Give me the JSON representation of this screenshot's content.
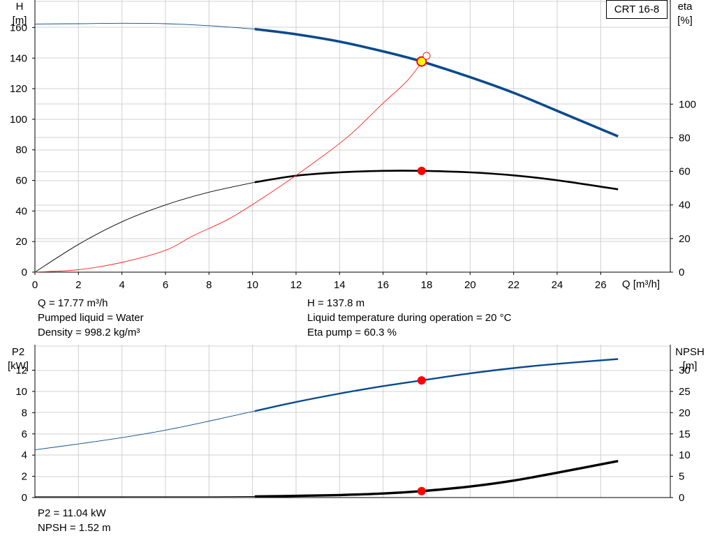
{
  "model_label": "CRT 16-8",
  "top_chart": {
    "left_axis_label": [
      "H",
      "[m]"
    ],
    "right_axis_label": [
      "eta",
      "[%]"
    ],
    "x_axis_label": "Q [m³/h]"
  },
  "bottom_chart": {
    "left_axis_label": [
      "P2",
      "[kW]"
    ],
    "right_axis_label": [
      "NPSH",
      "[m]"
    ]
  },
  "operating_point": {
    "left_lines": [
      "Q = 17.77 m³/h",
      "Pumped liquid = Water",
      "Density = 998.2 kg/m³"
    ],
    "right_lines": [
      "H = 137.8 m",
      "Liquid temperature during operation = 20 °C",
      "Eta pump = 60.3 %"
    ],
    "bottom_lines": [
      "P2 = 11.04 kW",
      "NPSH = 1.52 m"
    ]
  },
  "colors": {
    "head": "#0a4a8c",
    "efficiency": "#000000",
    "system_curve": "#ff2020",
    "p2": "#0a4a8c",
    "npsh": "#000000",
    "duty_marker": "#ff0000",
    "duty_marker_head": "#ffff00",
    "grid": "#d0d0d0"
  },
  "chart_data": [
    {
      "type": "line",
      "x_ticks": [
        0,
        2,
        4,
        6,
        8,
        10,
        12,
        14,
        16,
        18,
        20,
        22,
        24,
        26
      ],
      "xlim": [
        0,
        29.2
      ],
      "y_left_ticks": [
        0,
        20,
        40,
        60,
        80,
        100,
        120,
        140,
        160
      ],
      "ylim_left": [
        0,
        178
      ],
      "y_right_ticks": [
        0,
        20,
        40,
        60,
        80,
        100
      ],
      "grid": true,
      "series": [
        {
          "axis": "left",
          "x": [
            0,
            2,
            4,
            6,
            8,
            10.1,
            12,
            14,
            16,
            17.77,
            20,
            22,
            24,
            26.8
          ],
          "values": [
            162.3,
            162.5,
            162.8,
            162.5,
            161.2,
            159.0,
            155.6,
            150.8,
            144.4,
            137.8,
            127.5,
            117.3,
            105.5,
            88.8
          ],
          "preferred_range": [
            10.1,
            26.8
          ]
        },
        {
          "axis": "right",
          "x": [
            0,
            2,
            4,
            6,
            8,
            10.1,
            12,
            14,
            16,
            17.77,
            20,
            22,
            24,
            26.8
          ],
          "values": [
            0,
            16.5,
            30,
            40,
            47.6,
            53.5,
            57.4,
            59.4,
            60.3,
            60.3,
            59.4,
            57.6,
            54.7,
            49.3
          ],
          "preferred_range": [
            10.1,
            26.8
          ]
        },
        {
          "axis": "left",
          "x": [
            0,
            2,
            4,
            6,
            7.3,
            9,
            11,
            13,
            14.5,
            16,
            17.1,
            18
          ],
          "values": [
            0,
            1.6,
            6.4,
            14.3,
            24,
            35.5,
            53.5,
            73.5,
            90,
            110.5,
            125,
            141.5
          ]
        }
      ],
      "markers": [
        {
          "x": 17.77,
          "y": 137.8,
          "axis": "left"
        },
        {
          "x": 17.77,
          "y": 60.3,
          "axis": "right"
        },
        {
          "x": 18.0,
          "y": 141.5,
          "axis": "left"
        }
      ]
    },
    {
      "type": "line",
      "x_ticks": [
        0,
        2,
        4,
        6,
        8,
        10,
        12,
        14,
        16,
        18,
        20,
        22,
        24,
        26
      ],
      "xlim": [
        0,
        29.2
      ],
      "y_left_ticks": [
        0,
        2,
        4,
        6,
        8,
        10,
        12
      ],
      "ylim_left": [
        0,
        14.4
      ],
      "y_right_ticks": [
        0,
        5,
        10,
        15,
        20,
        25,
        30
      ],
      "ylim_right": [
        0,
        36
      ],
      "grid": true,
      "series": [
        {
          "axis": "left",
          "x": [
            0,
            2,
            4,
            6,
            8,
            10.1,
            12,
            14,
            16,
            17.77,
            20,
            22,
            24,
            26.8
          ],
          "values": [
            4.5,
            5.05,
            5.65,
            6.35,
            7.2,
            8.15,
            9.0,
            9.8,
            10.5,
            11.04,
            11.7,
            12.2,
            12.6,
            13.05
          ],
          "preferred_range": [
            10.1,
            26.8
          ]
        },
        {
          "axis": "right",
          "x": [
            0,
            4,
            8,
            10.1,
            12,
            14,
            16,
            17.77,
            20,
            22,
            24,
            26.8
          ],
          "values": [
            0.2,
            0.2,
            0.2,
            0.25,
            0.4,
            0.6,
            0.95,
            1.52,
            2.6,
            4.0,
            5.85,
            8.6
          ],
          "preferred_range": [
            10.1,
            26.8
          ]
        }
      ],
      "markers": [
        {
          "x": 17.77,
          "y": 11.04,
          "axis": "left"
        },
        {
          "x": 17.77,
          "y": 1.52,
          "axis": "right"
        }
      ]
    }
  ]
}
